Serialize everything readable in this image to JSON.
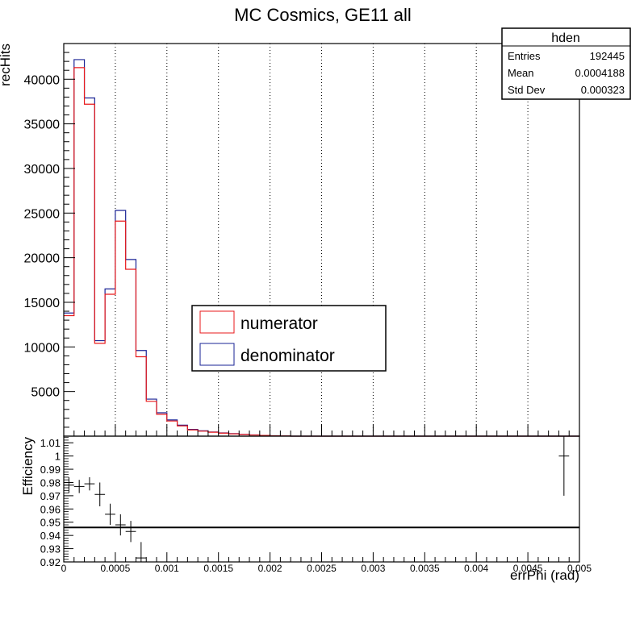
{
  "title": "MC Cosmics, GE11 all",
  "stats_box": {
    "name": "hden",
    "rows": [
      {
        "label": "Entries",
        "value": "192445"
      },
      {
        "label": "Mean",
        "value": "0.0004188"
      },
      {
        "label": "Std Dev",
        "value": "0.000323"
      }
    ]
  },
  "legend": [
    {
      "label": "numerator",
      "color": "#e8191b"
    },
    {
      "label": "denominator",
      "color": "#1a2395"
    }
  ],
  "colors": {
    "numerator": "#e8191b",
    "denominator": "#1a2395",
    "axis": "#000000",
    "grid": "#000000"
  },
  "chart_data": [
    {
      "type": "histogram",
      "panel": "top",
      "ylabel": "recHits",
      "xlim": [
        0,
        0.005
      ],
      "ylim": [
        0,
        44000
      ],
      "grid": "vertical dotted",
      "legend_position": "center",
      "bin_width": 0.0001,
      "x_ticks": [
        0,
        0.0005,
        0.001,
        0.0015,
        0.002,
        0.0025,
        0.003,
        0.0035,
        0.004,
        0.0045,
        0.005
      ],
      "y_tick_labels": [
        "5000",
        "10000",
        "15000",
        "20000",
        "25000",
        "30000",
        "35000",
        "40000"
      ],
      "y_ticks": [
        5000,
        10000,
        15000,
        20000,
        25000,
        30000,
        35000,
        40000
      ],
      "series": [
        {
          "name": "numerator",
          "bin_edges_start": 0.0,
          "values": [
            13500,
            41300,
            37200,
            10400,
            15900,
            24100,
            18700,
            8900,
            3900,
            2450,
            1700,
            1150,
            700,
            560,
            440,
            340,
            260,
            190,
            130,
            80,
            40,
            20,
            0,
            0,
            0,
            0,
            0,
            0,
            0,
            0,
            0,
            0,
            0,
            0,
            0,
            0,
            0,
            0,
            0,
            0,
            0,
            0,
            0,
            0,
            0,
            0,
            0,
            0,
            0,
            0
          ]
        },
        {
          "name": "denominator",
          "bin_edges_start": 0.0,
          "values": [
            13800,
            42200,
            37900,
            10700,
            16500,
            25300,
            19800,
            9600,
            4150,
            2620,
            1820,
            1230,
            760,
            600,
            470,
            360,
            280,
            200,
            140,
            85,
            45,
            22,
            0,
            0,
            0,
            0,
            0,
            0,
            0,
            0,
            0,
            0,
            0,
            0,
            0,
            0,
            0,
            0,
            0,
            0,
            0,
            0,
            0,
            0,
            0,
            0,
            0,
            0,
            0,
            0
          ]
        }
      ]
    },
    {
      "type": "scatter",
      "panel": "bottom",
      "xlabel": "errPhi (rad)",
      "ylabel": "Efficiency",
      "xlim": [
        0,
        0.005
      ],
      "ylim": [
        0.92,
        1.015
      ],
      "y_ticks": [
        0.92,
        0.93,
        0.94,
        0.95,
        0.96,
        0.97,
        0.98,
        0.99,
        1.0,
        1.01
      ],
      "y_tick_labels": [
        "0.92",
        "0.93",
        "0.94",
        "0.95",
        "0.96",
        "0.97",
        "0.98",
        "0.99",
        "1",
        "1.01"
      ],
      "x_tick_labels": [
        "0",
        "0.0005",
        "0.001",
        "0.0015",
        "0.002",
        "0.0025",
        "0.003",
        "0.0035",
        "0.004",
        "0.0045",
        "0.005"
      ],
      "reference_line": 0.946,
      "points": [
        {
          "x": 5e-05,
          "y": 0.978,
          "yerr": 0.006
        },
        {
          "x": 0.00015,
          "y": 0.977,
          "yerr": 0.005
        },
        {
          "x": 0.00025,
          "y": 0.979,
          "yerr": 0.005
        },
        {
          "x": 0.00035,
          "y": 0.971,
          "yerr": 0.009
        },
        {
          "x": 0.00045,
          "y": 0.956,
          "yerr": 0.008
        },
        {
          "x": 0.00055,
          "y": 0.948,
          "yerr": 0.008
        },
        {
          "x": 0.00065,
          "y": 0.943,
          "yerr": 0.008
        },
        {
          "x": 0.00075,
          "y": 0.923,
          "yerr": 0.012
        },
        {
          "x": 0.00485,
          "y": 1.0,
          "yerr": 0.03
        }
      ]
    }
  ]
}
